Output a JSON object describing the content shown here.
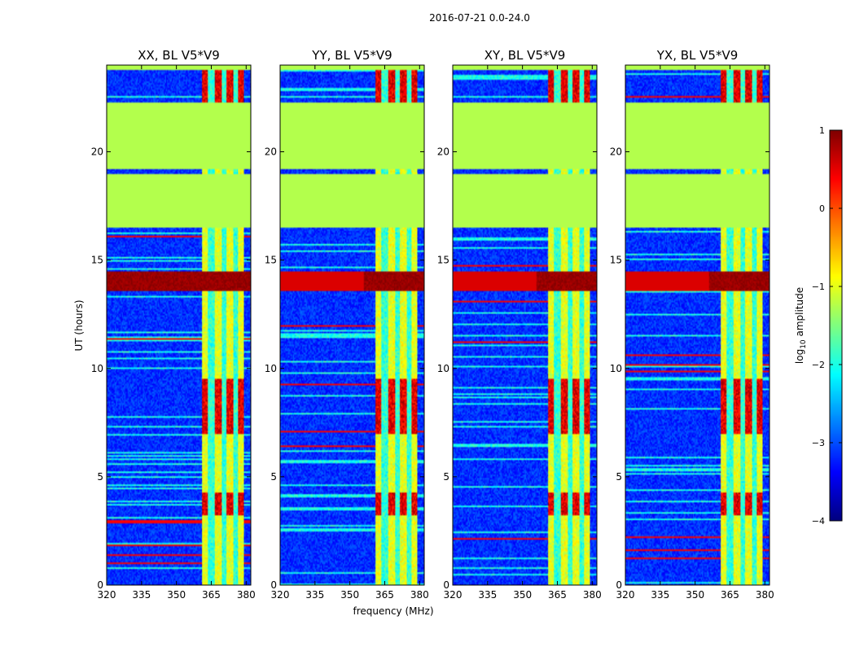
{
  "chart_data": {
    "type": "heatmap",
    "suptitle": "2016-07-21 0.0-24.0",
    "ylabel": "UT (hours)",
    "xlabel": "frequency (MHz)",
    "xlim": [
      320,
      382
    ],
    "ylim": [
      0,
      24
    ],
    "xticks": [
      "320",
      "335",
      "350",
      "365",
      "380"
    ],
    "xtick_values": [
      320,
      335,
      350,
      365,
      380
    ],
    "yticks": [
      "0",
      "5",
      "10",
      "15",
      "20"
    ],
    "ytick_values": [
      0,
      5,
      10,
      15,
      20
    ],
    "panels": [
      {
        "title": "XX, BL V5*V9"
      },
      {
        "title": "YY, BL V5*V9"
      },
      {
        "title": "XY, BL V5*V9"
      },
      {
        "title": "YX, BL V5*V9"
      }
    ],
    "colorbar": {
      "label_pre": "log",
      "label_sub": "10",
      "label_post": " amplitude",
      "range": [
        -4,
        1
      ],
      "ticks": [
        "1",
        "0",
        "−1",
        "−2",
        "−3",
        "−4"
      ],
      "tick_values": [
        1,
        0,
        -1,
        -2,
        -3,
        -4
      ],
      "colormap": "jet"
    },
    "flagged_ut_ranges_hours": [
      [
        16.5,
        19.0
      ],
      [
        19.2,
        22.3
      ],
      [
        20.6,
        20.7
      ],
      [
        23.8,
        24.0
      ]
    ],
    "rfi_band_mhz": [
      361,
      379
    ],
    "rfi_channel_centers_mhz": [
      362,
      368,
      373,
      378
    ],
    "high_amplitude_ut_ranges_hours": [
      [
        13.6,
        14.5
      ],
      [
        7.0,
        9.5
      ],
      [
        3.2,
        4.3
      ],
      [
        22.2,
        23.8
      ]
    ]
  }
}
